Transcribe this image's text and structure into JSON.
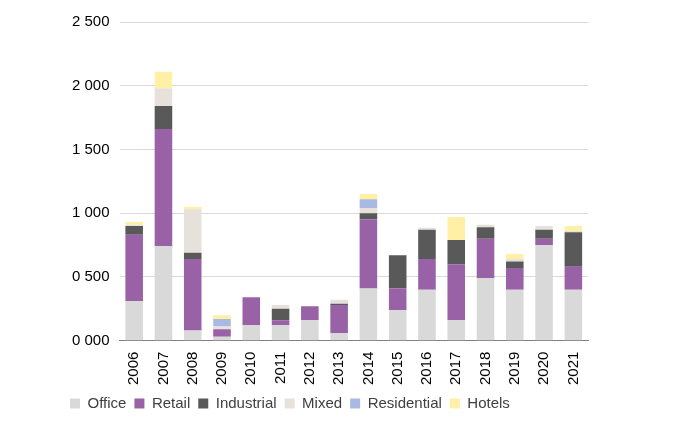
{
  "chart_data": {
    "type": "bar",
    "categories": [
      "2006",
      "2007",
      "2008",
      "2009",
      "2010",
      "2011",
      "2012",
      "2013",
      "2014",
      "2015",
      "2016",
      "2017",
      "2018",
      "2019",
      "2020",
      "2021"
    ],
    "series": [
      {
        "name": "Office",
        "color": "#d9d9d9",
        "values": [
          310,
          740,
          80,
          30,
          120,
          120,
          160,
          60,
          410,
          240,
          400,
          160,
          490,
          400,
          750,
          400
        ]
      },
      {
        "name": "Retail",
        "color": "#9a62a6",
        "values": [
          520,
          920,
          560,
          60,
          220,
          40,
          110,
          220,
          540,
          170,
          240,
          440,
          310,
          170,
          50,
          180
        ]
      },
      {
        "name": "Industrial",
        "color": "#595959",
        "values": [
          70,
          180,
          50,
          0,
          0,
          90,
          0,
          10,
          50,
          260,
          230,
          190,
          90,
          50,
          70,
          270
        ]
      },
      {
        "name": "Mixed",
        "color": "#e7e1dc",
        "values": [
          10,
          140,
          340,
          20,
          0,
          30,
          0,
          30,
          40,
          0,
          15,
          0,
          20,
          20,
          30,
          10
        ]
      },
      {
        "name": "Residential",
        "color": "#a9b9e2",
        "values": [
          0,
          0,
          0,
          60,
          0,
          0,
          0,
          0,
          70,
          0,
          0,
          0,
          0,
          0,
          0,
          0
        ]
      },
      {
        "name": "Hotels",
        "color": "#fff0a6",
        "values": [
          20,
          130,
          20,
          30,
          0,
          0,
          0,
          0,
          40,
          0,
          0,
          180,
          0,
          40,
          0,
          40
        ]
      }
    ],
    "ylim": [
      0,
      2500
    ],
    "yticks": [
      {
        "value": 0,
        "label": "0 000"
      },
      {
        "value": 500,
        "label": "0 500"
      },
      {
        "value": 1000,
        "label": "1 000"
      },
      {
        "value": 1500,
        "label": "1 500"
      },
      {
        "value": 2000,
        "label": "2 000"
      },
      {
        "value": 2500,
        "label": "2 500"
      }
    ],
    "stacked": true,
    "grid": true,
    "legend": "bottom"
  }
}
